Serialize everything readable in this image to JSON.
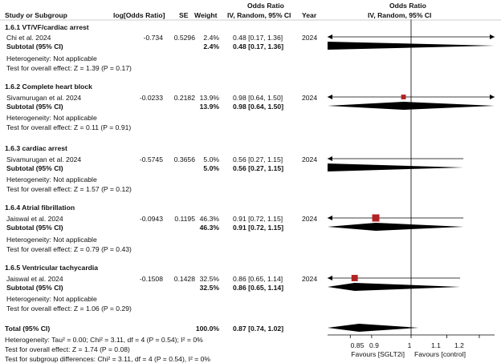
{
  "header": {
    "study": "Study or Subgroup",
    "logor": "log[Odds Ratio]",
    "se": "SE",
    "weight": "Weight",
    "or_title": "Odds Ratio",
    "or_method": "IV, Random, 95% CI",
    "year": "Year",
    "plot_title": "Odds Ratio",
    "plot_method": "IV, Random, 95% CI"
  },
  "subgroups": [
    {
      "title": "1.6.1 VT/VF/cardiac arrest",
      "study": {
        "name": "Chi et al. 2024",
        "logor": "-0.734",
        "se": "0.5296",
        "weight": "2.4%",
        "ci": "0.48 [0.17, 1.36]",
        "year": "2024"
      },
      "subtotal": {
        "label": "Subtotal (95% CI)",
        "weight": "2.4%",
        "ci": "0.48 [0.17, 1.36]"
      },
      "heterogeneity": "Heterogeneity: Not applicable",
      "overall": "Test for overall effect: Z = 1.39 (P = 0.17)"
    },
    {
      "title": "1.6.2 Complete heart block",
      "study": {
        "name": "Sivamurugan et al. 2024",
        "logor": "-0.0233",
        "se": "0.2182",
        "weight": "13.9%",
        "ci": "0.98 [0.64, 1.50]",
        "year": "2024"
      },
      "subtotal": {
        "label": "Subtotal (95% CI)",
        "weight": "13.9%",
        "ci": "0.98 [0.64, 1.50]"
      },
      "heterogeneity": "Heterogeneity: Not applicable",
      "overall": "Test for overall effect: Z = 0.11 (P = 0.91)"
    },
    {
      "title": "1.6.3 cardiac arrest",
      "study": {
        "name": "Sivamurugan et al. 2024",
        "logor": "-0.5745",
        "se": "0.3656",
        "weight": "5.0%",
        "ci": "0.56 [0.27, 1.15]",
        "year": "2024"
      },
      "subtotal": {
        "label": "Subtotal (95% CI)",
        "weight": "5.0%",
        "ci": "0.56 [0.27, 1.15]"
      },
      "heterogeneity": "Heterogeneity: Not applicable",
      "overall": "Test for overall effect: Z = 1.57 (P = 0.12)"
    },
    {
      "title": "1.6.4 Atrial fibrillation",
      "study": {
        "name": "Jaiswal et al. 2024",
        "logor": "-0.0943",
        "se": "0.1195",
        "weight": "46.3%",
        "ci": "0.91 [0.72, 1.15]",
        "year": "2024"
      },
      "subtotal": {
        "label": "Subtotal (95% CI)",
        "weight": "46.3%",
        "ci": "0.91 [0.72, 1.15]"
      },
      "heterogeneity": "Heterogeneity: Not applicable",
      "overall": "Test for overall effect: Z = 0.79 (P = 0.43)"
    },
    {
      "title": "1.6.5 Ventricular tachycardia",
      "study": {
        "name": "Jaiswal et al. 2024",
        "logor": "-0.1508",
        "se": "0.1428",
        "weight": "32.5%",
        "ci": "0.86 [0.65, 1.14]",
        "year": "2024"
      },
      "subtotal": {
        "label": "Subtotal (95% CI)",
        "weight": "32.5%",
        "ci": "0.86 [0.65, 1.14]"
      },
      "heterogeneity": "Heterogeneity: Not applicable",
      "overall": "Test for overall effect: Z = 1.06 (P = 0.29)"
    }
  ],
  "total": {
    "label": "Total (95% CI)",
    "weight": "100.0%",
    "ci": "0.87 [0.74, 1.02]",
    "heterogeneity": "Heterogeneity: Tau² = 0.00; Chi² = 3.11, df = 4 (P = 0.54); I² = 0%",
    "overall": "Test for overall effect: Z = 1.74 (P = 0.08)",
    "subgroup_diff": "Test for subgroup differences: Chi² = 3.11, df = 4 (P = 0.54), I² = 0%"
  },
  "axis": {
    "ticks": [
      "0.85",
      "0.9",
      "1",
      "1.1",
      "1.2"
    ],
    "favours_left": "Favours [SGLT2i]",
    "favours_right": "Favours [control]"
  },
  "colors": {
    "marker": "#b22222",
    "ink": "#000000"
  },
  "chart_data": {
    "type": "forest",
    "scale": "log",
    "xlim": [
      0.8,
      1.25
    ],
    "null_value": 1,
    "ticks": [
      0.85,
      0.9,
      1,
      1.1,
      1.2
    ],
    "studies": [
      {
        "name": "Chi et al. 2024",
        "or": 0.48,
        "lo": 0.17,
        "hi": 1.36,
        "weight": 2.4
      },
      {
        "name": "Sivamurugan et al. 2024",
        "or": 0.98,
        "lo": 0.64,
        "hi": 1.5,
        "weight": 13.9
      },
      {
        "name": "Sivamurugan et al. 2024",
        "or": 0.56,
        "lo": 0.27,
        "hi": 1.15,
        "weight": 5.0
      },
      {
        "name": "Jaiswal et al. 2024",
        "or": 0.91,
        "lo": 0.72,
        "hi": 1.15,
        "weight": 46.3
      },
      {
        "name": "Jaiswal et al. 2024",
        "or": 0.86,
        "lo": 0.65,
        "hi": 1.14,
        "weight": 32.5
      }
    ],
    "subtotals": [
      {
        "or": 0.48,
        "lo": 0.17,
        "hi": 1.36
      },
      {
        "or": 0.98,
        "lo": 0.64,
        "hi": 1.5
      },
      {
        "or": 0.56,
        "lo": 0.27,
        "hi": 1.15
      },
      {
        "or": 0.91,
        "lo": 0.72,
        "hi": 1.15
      },
      {
        "or": 0.86,
        "lo": 0.65,
        "hi": 1.14
      }
    ],
    "total": {
      "or": 0.87,
      "lo": 0.74,
      "hi": 1.02
    }
  }
}
